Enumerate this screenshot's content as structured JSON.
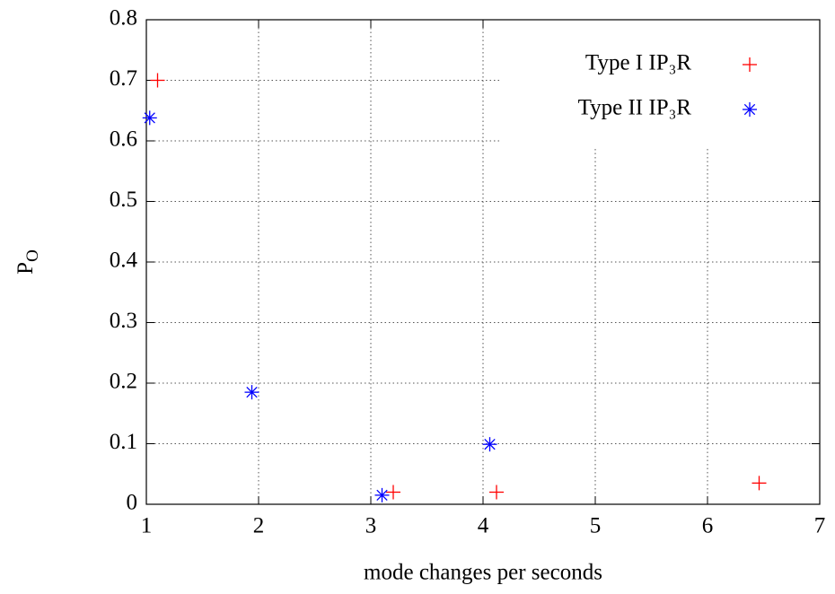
{
  "chart_data": {
    "type": "scatter",
    "x_label": "mode changes per seconds",
    "y_label": {
      "main": "P",
      "sub": "O"
    },
    "xlim": [
      1,
      7
    ],
    "xticks": [
      1,
      2,
      3,
      4,
      5,
      6,
      7
    ],
    "ylim": [
      0,
      0.8
    ],
    "yticks": [
      0,
      0.1,
      0.2,
      0.3,
      0.4,
      0.5,
      0.6,
      0.7,
      0.8
    ],
    "grid": true,
    "legend": "top-right",
    "series": [
      {
        "name": "Type I IP₃R",
        "color": "#ff0000",
        "marker": "plus",
        "x": [
          1.1,
          3.2,
          4.12,
          6.46
        ],
        "values": [
          0.7,
          0.02,
          0.02,
          0.035
        ]
      },
      {
        "name": "Type II IP₃R",
        "color": "#0000ff",
        "marker": "star",
        "x": [
          1.03,
          1.94,
          3.1,
          4.06
        ],
        "values": [
          0.638,
          0.185,
          0.015,
          0.099
        ]
      }
    ]
  }
}
